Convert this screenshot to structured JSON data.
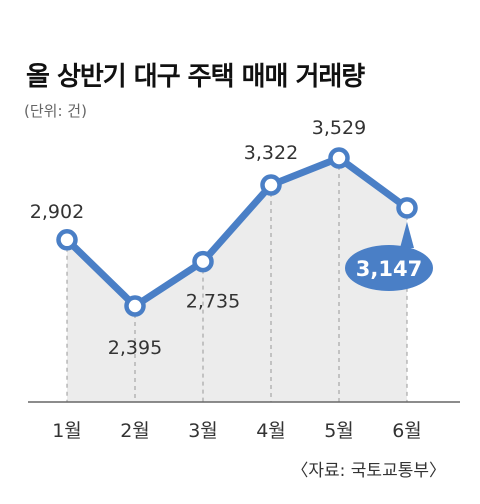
{
  "title": "올 상반기 대구 주택 매매 거래량",
  "unit": "(단위: 건)",
  "source": "〈자료: 국토교통부〉",
  "colors": {
    "line": "#4a7fc6",
    "area": "#ececec",
    "callout": "#4a7fc6"
  },
  "chart_data": {
    "type": "line",
    "categories": [
      "1월",
      "2월",
      "3월",
      "4월",
      "5월",
      "6월"
    ],
    "values": [
      2902,
      2395,
      2735,
      3322,
      3529,
      3147
    ],
    "value_labels": [
      "2,902",
      "2,395",
      "2,735",
      "3,322",
      "3,529",
      "3,147"
    ],
    "highlight_index": 5,
    "title": "올 상반기 대구 주택 매매 거래량",
    "ylabel": "",
    "xlabel": ""
  }
}
